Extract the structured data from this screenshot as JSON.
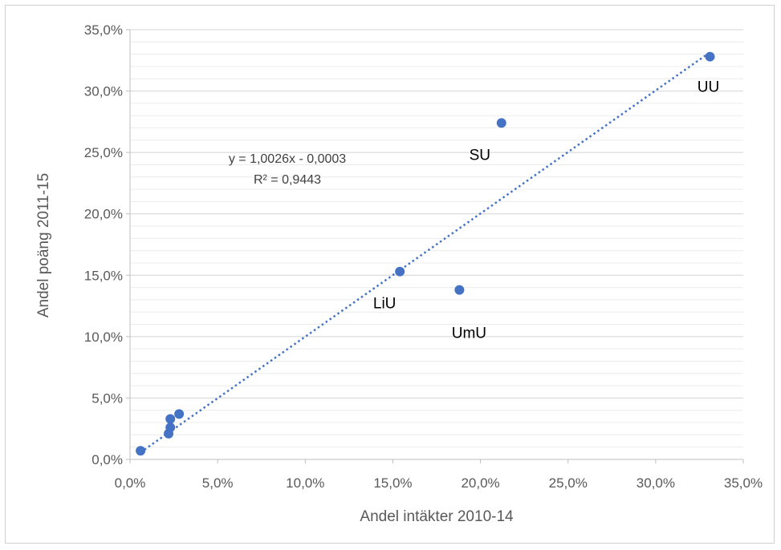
{
  "chart_data": {
    "type": "scatter",
    "title": "",
    "xlabel": "Andel  intäkter 2010-14",
    "ylabel": "Andel poäng 2011-15",
    "xlim": [
      0,
      0.35
    ],
    "ylim": [
      0,
      0.35
    ],
    "x_ticks": [
      "0,0%",
      "5,0%",
      "10,0%",
      "15,0%",
      "20,0%",
      "25,0%",
      "30,0%",
      "35,0%"
    ],
    "y_ticks": [
      "0,0%",
      "5,0%",
      "10,0%",
      "15,0%",
      "20,0%",
      "25,0%",
      "30,0%",
      "35,0%"
    ],
    "grid": "major and minor horizontal gridlines",
    "marker_color": "#4472C4",
    "points": [
      {
        "x": 0.006,
        "y": 0.007,
        "label": ""
      },
      {
        "x": 0.022,
        "y": 0.021,
        "label": ""
      },
      {
        "x": 0.023,
        "y": 0.026,
        "label": ""
      },
      {
        "x": 0.023,
        "y": 0.033,
        "label": ""
      },
      {
        "x": 0.028,
        "y": 0.037,
        "label": ""
      },
      {
        "x": 0.154,
        "y": 0.153,
        "label": "LiU"
      },
      {
        "x": 0.188,
        "y": 0.138,
        "label": "UmU"
      },
      {
        "x": 0.212,
        "y": 0.274,
        "label": "SU"
      },
      {
        "x": 0.331,
        "y": 0.328,
        "label": "UU"
      }
    ],
    "trendline": {
      "type": "linear",
      "style": "dotted",
      "slope": 1.0026,
      "intercept": -0.0003,
      "x_range": [
        0.006,
        0.331
      ],
      "equation": "y = 1,0026x - 0,0003",
      "r_squared": "R² = 0,9443"
    }
  }
}
